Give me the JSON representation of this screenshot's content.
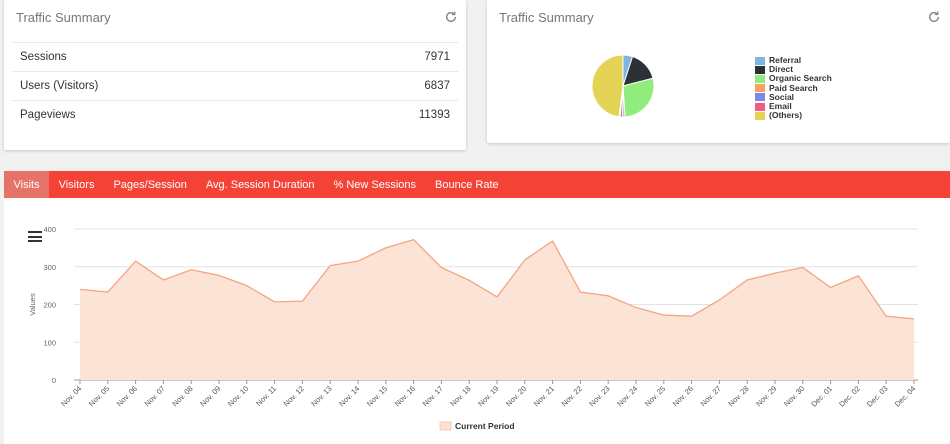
{
  "left_card": {
    "title": "Traffic Summary",
    "rows": [
      {
        "label": "Sessions",
        "value": "7971"
      },
      {
        "label": "Users (Visitors)",
        "value": "6837"
      },
      {
        "label": "Pageviews",
        "value": "11393"
      }
    ]
  },
  "right_card": {
    "title": "Traffic Summary",
    "pie": {
      "slices": [
        {
          "name": "Referral",
          "value": 5,
          "color": "#7fb3e0"
        },
        {
          "name": "Direct",
          "value": 16,
          "color": "#2d3035"
        },
        {
          "name": "Organic Search",
          "value": 28,
          "color": "#90ed7d"
        },
        {
          "name": "Paid Search",
          "value": 1.2,
          "color": "#f7a35c"
        },
        {
          "name": "Social",
          "value": 1.3,
          "color": "#8085e9"
        },
        {
          "name": "Email",
          "value": 0.6,
          "color": "#f15c80"
        },
        {
          "name": "(Others)",
          "value": 47.9,
          "color": "#e4d354"
        }
      ]
    }
  },
  "tabs": [
    {
      "label": "Visits",
      "active": true
    },
    {
      "label": "Visitors",
      "active": false
    },
    {
      "label": "Pages/Session",
      "active": false
    },
    {
      "label": "Avg. Session Duration",
      "active": false
    },
    {
      "label": "% New Sessions",
      "active": false
    },
    {
      "label": "Bounce Rate",
      "active": false
    }
  ],
  "chart_data": {
    "type": "area",
    "ylabel": "Values",
    "ylim": [
      0,
      400
    ],
    "yticks": [
      0,
      100,
      200,
      300,
      400
    ],
    "grid": true,
    "legend_position": "bottom-center",
    "categories": [
      "Nov. 04",
      "Nov. 05",
      "Nov. 06",
      "Nov. 07",
      "Nov. 08",
      "Nov. 09",
      "Nov. 10",
      "Nov. 11",
      "Nov. 12",
      "Nov. 13",
      "Nov. 14",
      "Nov. 15",
      "Nov. 16",
      "Nov. 17",
      "Nov. 18",
      "Nov. 19",
      "Nov. 20",
      "Nov. 21",
      "Nov. 22",
      "Nov. 23",
      "Nov. 24",
      "Nov. 25",
      "Nov. 26",
      "Nov. 27",
      "Nov. 28",
      "Nov. 29",
      "Nov. 30",
      "Dec. 01",
      "Dec. 02",
      "Dec. 03",
      "Dec. 04"
    ],
    "series": [
      {
        "name": "Current Period",
        "color": "#f4a582",
        "fill": "#fbe3d6",
        "values": [
          240,
          233,
          315,
          265,
          292,
          277,
          250,
          207,
          209,
          303,
          315,
          350,
          372,
          298,
          264,
          220,
          318,
          368,
          233,
          223,
          192,
          172,
          169,
          212,
          265,
          283,
          298,
          245,
          276,
          169,
          162
        ]
      }
    ]
  }
}
